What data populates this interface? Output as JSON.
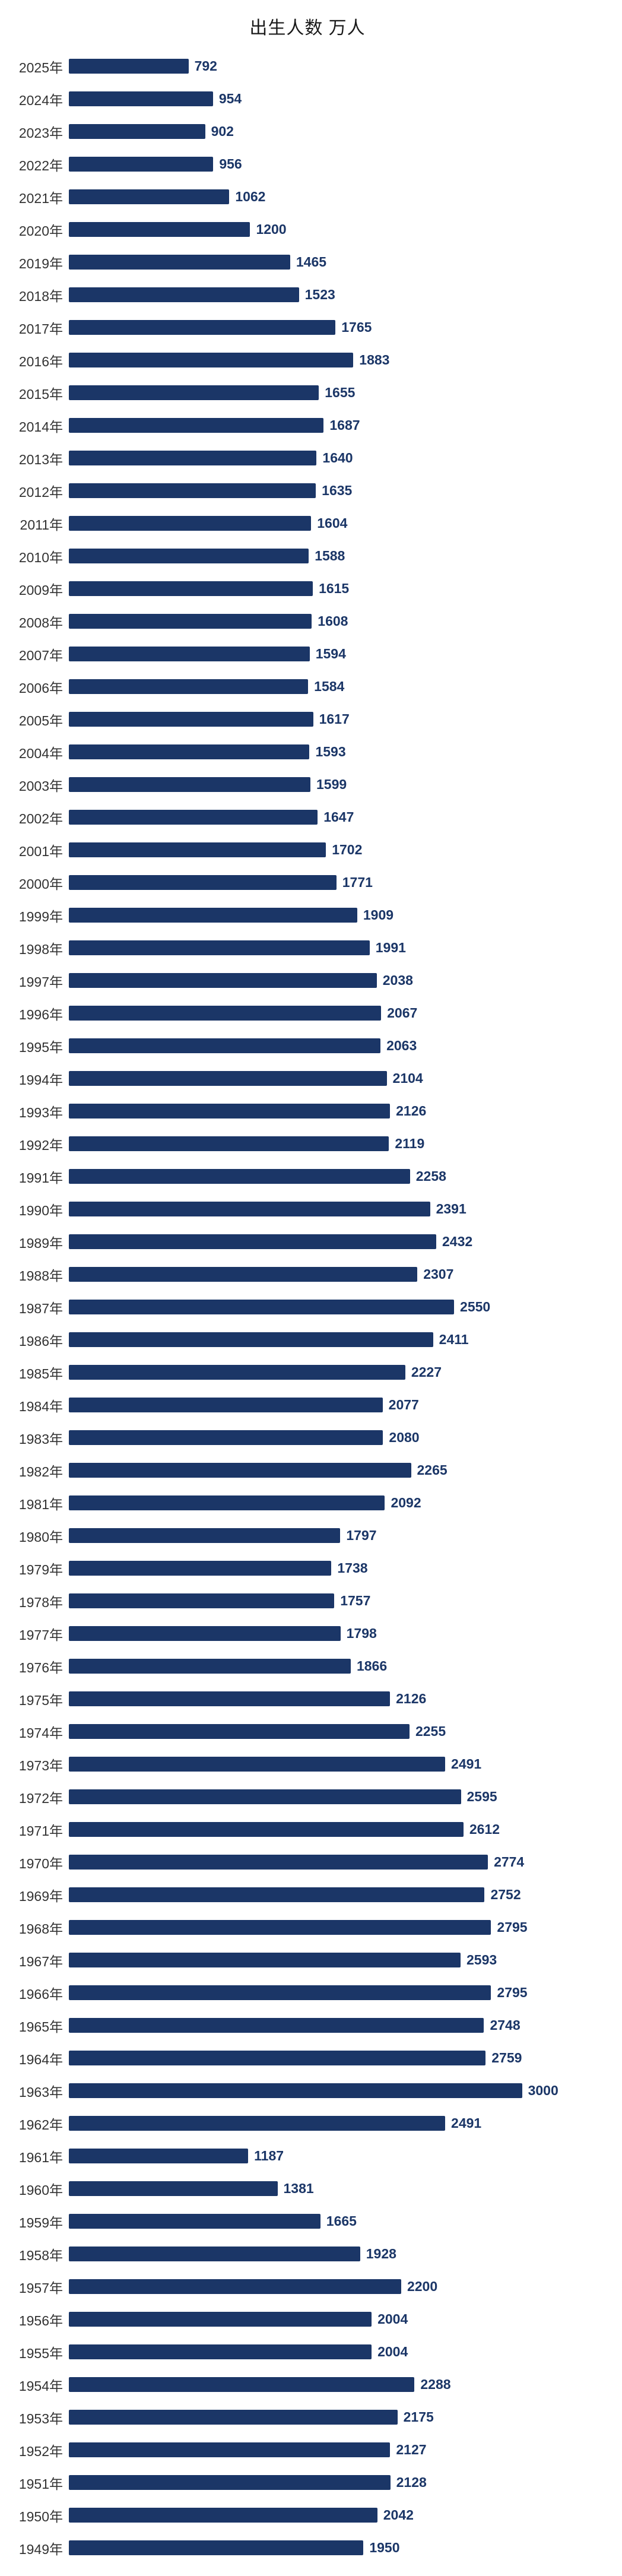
{
  "chart_data": {
    "type": "bar",
    "orientation": "horizontal",
    "title": "出生人数 万人",
    "xlabel": "",
    "ylabel": "",
    "xlim": [
      0,
      3000
    ],
    "grid": false,
    "legend": "none",
    "bar_color": "#1b3667",
    "categories": [
      "2025年",
      "2024年",
      "2023年",
      "2022年",
      "2021年",
      "2020年",
      "2019年",
      "2018年",
      "2017年",
      "2016年",
      "2015年",
      "2014年",
      "2013年",
      "2012年",
      "2011年",
      "2010年",
      "2009年",
      "2008年",
      "2007年",
      "2006年",
      "2005年",
      "2004年",
      "2003年",
      "2002年",
      "2001年",
      "2000年",
      "1999年",
      "1998年",
      "1997年",
      "1996年",
      "1995年",
      "1994年",
      "1993年",
      "1992年",
      "1991年",
      "1990年",
      "1989年",
      "1988年",
      "1987年",
      "1986年",
      "1985年",
      "1984年",
      "1983年",
      "1982年",
      "1981年",
      "1980年",
      "1979年",
      "1978年",
      "1977年",
      "1976年",
      "1975年",
      "1974年",
      "1973年",
      "1972年",
      "1971年",
      "1970年",
      "1969年",
      "1968年",
      "1967年",
      "1966年",
      "1965年",
      "1964年",
      "1963年",
      "1962年",
      "1961年",
      "1960年",
      "1959年",
      "1958年",
      "1957年",
      "1956年",
      "1955年",
      "1954年",
      "1953年",
      "1952年",
      "1951年",
      "1950年",
      "1949年"
    ],
    "values": [
      792,
      954,
      902,
      956,
      1062,
      1200,
      1465,
      1523,
      1765,
      1883,
      1655,
      1687,
      1640,
      1635,
      1604,
      1588,
      1615,
      1608,
      1594,
      1584,
      1617,
      1593,
      1599,
      1647,
      1702,
      1771,
      1909,
      1991,
      2038,
      2067,
      2063,
      2104,
      2126,
      2119,
      2258,
      2391,
      2432,
      2307,
      2550,
      2411,
      2227,
      2077,
      2080,
      2265,
      2092,
      1797,
      1738,
      1757,
      1798,
      1866,
      2126,
      2255,
      2491,
      2595,
      2612,
      2774,
      2752,
      2795,
      2593,
      2795,
      2748,
      2759,
      3000,
      2491,
      1187,
      1381,
      1665,
      1928,
      2200,
      2004,
      2004,
      2288,
      2175,
      2127,
      2128,
      2042,
      1950
    ]
  }
}
